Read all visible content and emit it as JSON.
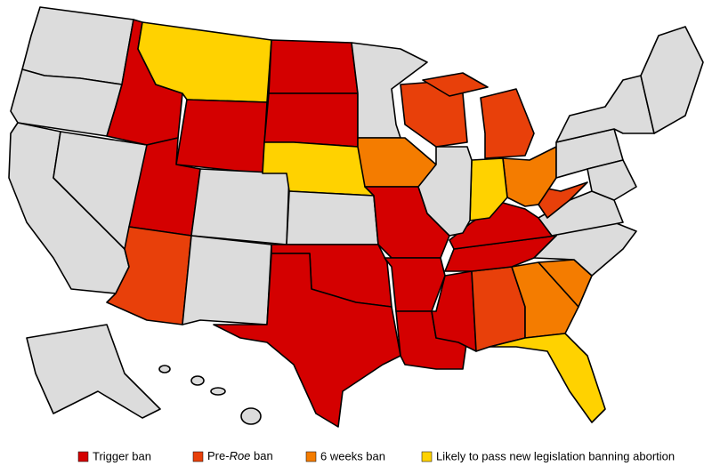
{
  "legend": [
    {
      "label": "Trigger ban",
      "color": "#d40000"
    },
    {
      "label": {
        "before": "Pre-",
        "italic": "Roe",
        "after": " ban"
      },
      "color": "#e8400a"
    },
    {
      "label": "6 weeks ban",
      "color": "#f47c00"
    },
    {
      "label": "Likely to pass new legislation banning abortion",
      "color": "#ffd200"
    }
  ]
}
